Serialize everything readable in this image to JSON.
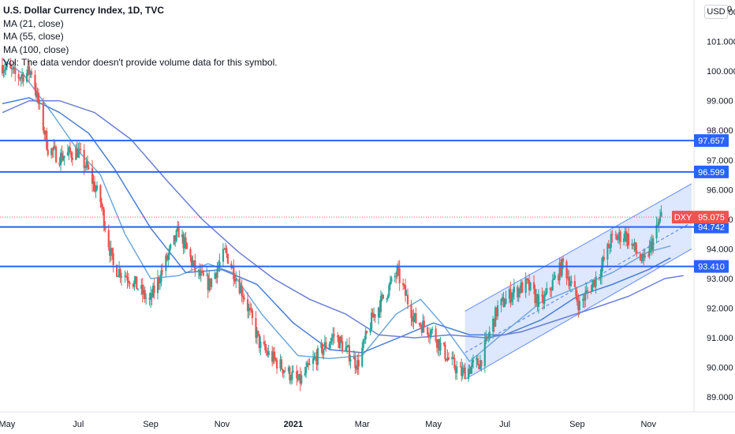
{
  "header": {
    "title": "U.S. Dollar Currency Index, 1D, TVC",
    "ma_lines": [
      "MA (21, close)",
      "MA (55, close)",
      "MA (100, close)"
    ],
    "vol_note": "Vol: The data vendor doesn't provide volume data for this symbol.",
    "currency": "USD",
    "corner_value": "0"
  },
  "colors": {
    "up": "#26a69a",
    "down": "#ef5350",
    "level": "#2962ff",
    "ma21": "#6fa8dc",
    "ma55": "#4a7fd6",
    "ma100": "#6b7fd7",
    "channel_fill": "#c7d7fb",
    "channel_edge": "#2962ff",
    "dxy": "#ef5350",
    "text": "#131722"
  },
  "chart_data": {
    "type": "candlestick",
    "symbol": "DXY",
    "ylim": [
      88.5,
      102.4
    ],
    "y_ticks": [
      "89.000",
      "90.000",
      "91.000",
      "92.000",
      "93.000",
      "94.000",
      "95.000",
      "96.000",
      "97.000",
      "98.000",
      "99.000",
      "100.000",
      "101.000",
      "102.000"
    ],
    "x_ticks": [
      {
        "label": "May",
        "date": "2020-05-01",
        "bold": false
      },
      {
        "label": "Jul",
        "date": "2020-07-01",
        "bold": false
      },
      {
        "label": "Sep",
        "date": "2020-09-01",
        "bold": false
      },
      {
        "label": "Nov",
        "date": "2020-11-01",
        "bold": false
      },
      {
        "label": "2021",
        "date": "2021-01-01",
        "bold": true
      },
      {
        "label": "Mar",
        "date": "2021-03-01",
        "bold": false
      },
      {
        "label": "May",
        "date": "2021-05-01",
        "bold": false
      },
      {
        "label": "Jul",
        "date": "2021-07-01",
        "bold": false
      },
      {
        "label": "Sep",
        "date": "2021-09-01",
        "bold": false
      },
      {
        "label": "Nov",
        "date": "2021-11-01",
        "bold": false
      }
    ],
    "x_range": [
      "2020-04-25",
      "2021-12-10"
    ],
    "close_path": [
      [
        "2020-04-27",
        100.2
      ],
      [
        "2020-05-10",
        99.8
      ],
      [
        "2020-05-22",
        100.0
      ],
      [
        "2020-06-05",
        97.4
      ],
      [
        "2020-06-15",
        97.1
      ],
      [
        "2020-06-30",
        97.3
      ],
      [
        "2020-07-10",
        96.6
      ],
      [
        "2020-07-20",
        95.6
      ],
      [
        "2020-07-31",
        93.4
      ],
      [
        "2020-08-15",
        93.0
      ],
      [
        "2020-08-31",
        92.2
      ],
      [
        "2020-09-10",
        93.2
      ],
      [
        "2020-09-25",
        94.6
      ],
      [
        "2020-10-10",
        93.2
      ],
      [
        "2020-10-21",
        92.8
      ],
      [
        "2020-11-04",
        93.9
      ],
      [
        "2020-11-20",
        92.4
      ],
      [
        "2020-12-04",
        90.7
      ],
      [
        "2020-12-20",
        90.1
      ],
      [
        "2021-01-06",
        89.5
      ],
      [
        "2021-01-20",
        90.3
      ],
      [
        "2021-02-05",
        91.1
      ],
      [
        "2021-02-25",
        90.1
      ],
      [
        "2021-03-10",
        91.7
      ],
      [
        "2021-03-31",
        93.2
      ],
      [
        "2021-04-15",
        91.6
      ],
      [
        "2021-04-30",
        91.2
      ],
      [
        "2021-05-15",
        90.2
      ],
      [
        "2021-05-25",
        89.8
      ],
      [
        "2021-06-10",
        90.2
      ],
      [
        "2021-06-25",
        92.0
      ],
      [
        "2021-07-07",
        92.5
      ],
      [
        "2021-07-20",
        92.8
      ],
      [
        "2021-08-01",
        92.1
      ],
      [
        "2021-08-20",
        93.5
      ],
      [
        "2021-09-03",
        92.1
      ],
      [
        "2021-09-20",
        93.2
      ],
      [
        "2021-09-30",
        94.3
      ],
      [
        "2021-10-12",
        94.5
      ],
      [
        "2021-10-28",
        93.5
      ],
      [
        "2021-11-05",
        94.3
      ],
      [
        "2021-11-12",
        95.1
      ]
    ],
    "moving_averages": [
      {
        "name": "MA (21, close)",
        "points": [
          [
            "2020-04-27",
            100.4
          ],
          [
            "2020-05-15",
            99.9
          ],
          [
            "2020-06-10",
            98.5
          ],
          [
            "2020-07-01",
            97.3
          ],
          [
            "2020-07-20",
            96.5
          ],
          [
            "2020-08-10",
            94.5
          ],
          [
            "2020-09-01",
            93.0
          ],
          [
            "2020-09-25",
            93.1
          ],
          [
            "2020-10-20",
            93.5
          ],
          [
            "2020-11-10",
            93.2
          ],
          [
            "2020-12-05",
            91.8
          ],
          [
            "2021-01-05",
            90.4
          ],
          [
            "2021-02-01",
            90.3
          ],
          [
            "2021-03-01",
            90.4
          ],
          [
            "2021-03-30",
            91.8
          ],
          [
            "2021-04-20",
            92.3
          ],
          [
            "2021-05-10",
            91.4
          ],
          [
            "2021-06-01",
            90.2
          ],
          [
            "2021-07-01",
            91.2
          ],
          [
            "2021-08-01",
            92.2
          ],
          [
            "2021-09-01",
            92.7
          ],
          [
            "2021-10-01",
            93.2
          ],
          [
            "2021-11-01",
            93.9
          ],
          [
            "2021-11-20",
            94.1
          ]
        ]
      },
      {
        "name": "MA (55, close)",
        "points": [
          [
            "2020-04-27",
            98.9
          ],
          [
            "2020-05-20",
            99.1
          ],
          [
            "2020-06-15",
            98.6
          ],
          [
            "2020-07-10",
            97.9
          ],
          [
            "2020-08-01",
            96.7
          ],
          [
            "2020-09-01",
            94.7
          ],
          [
            "2020-10-01",
            93.2
          ],
          [
            "2020-11-01",
            93.3
          ],
          [
            "2020-12-01",
            92.8
          ],
          [
            "2021-01-01",
            91.5
          ],
          [
            "2021-02-01",
            90.6
          ],
          [
            "2021-03-01",
            90.5
          ],
          [
            "2021-04-01",
            91.0
          ],
          [
            "2021-05-01",
            91.5
          ],
          [
            "2021-06-01",
            91.1
          ],
          [
            "2021-07-01",
            91.1
          ],
          [
            "2021-08-01",
            91.6
          ],
          [
            "2021-09-01",
            92.4
          ],
          [
            "2021-10-01",
            92.8
          ],
          [
            "2021-11-01",
            93.3
          ],
          [
            "2021-11-20",
            93.7
          ]
        ]
      },
      {
        "name": "MA (100, close)",
        "points": [
          [
            "2020-04-27",
            98.6
          ],
          [
            "2020-05-20",
            99.0
          ],
          [
            "2020-06-15",
            99.0
          ],
          [
            "2020-07-15",
            98.6
          ],
          [
            "2020-08-15",
            97.7
          ],
          [
            "2020-09-15",
            96.3
          ],
          [
            "2020-10-15",
            95.0
          ],
          [
            "2020-11-15",
            93.9
          ],
          [
            "2020-12-15",
            93.0
          ],
          [
            "2021-01-15",
            92.3
          ],
          [
            "2021-02-15",
            91.8
          ],
          [
            "2021-03-15",
            91.1
          ],
          [
            "2021-04-15",
            91.0
          ],
          [
            "2021-05-15",
            91.1
          ],
          [
            "2021-06-15",
            91.0
          ],
          [
            "2021-07-15",
            91.2
          ],
          [
            "2021-08-15",
            91.6
          ],
          [
            "2021-09-15",
            92.0
          ],
          [
            "2021-10-15",
            92.4
          ],
          [
            "2021-11-15",
            93.0
          ],
          [
            "2021-12-01",
            93.1
          ]
        ]
      }
    ],
    "horizontal_levels": [
      97.657,
      96.599,
      94.742,
      93.41
    ],
    "level_labels": [
      "97.657",
      "96.599",
      "94.742",
      "93.410"
    ],
    "regression_channel": {
      "start": "2021-05-28",
      "end": "2021-12-08",
      "upper": [
        91.9,
        96.2
      ],
      "middle": [
        90.5,
        94.9
      ],
      "lower": [
        89.6,
        94.0
      ]
    },
    "last_price": {
      "symbol": "DXY",
      "value": 95.075,
      "label": "95.075"
    }
  }
}
